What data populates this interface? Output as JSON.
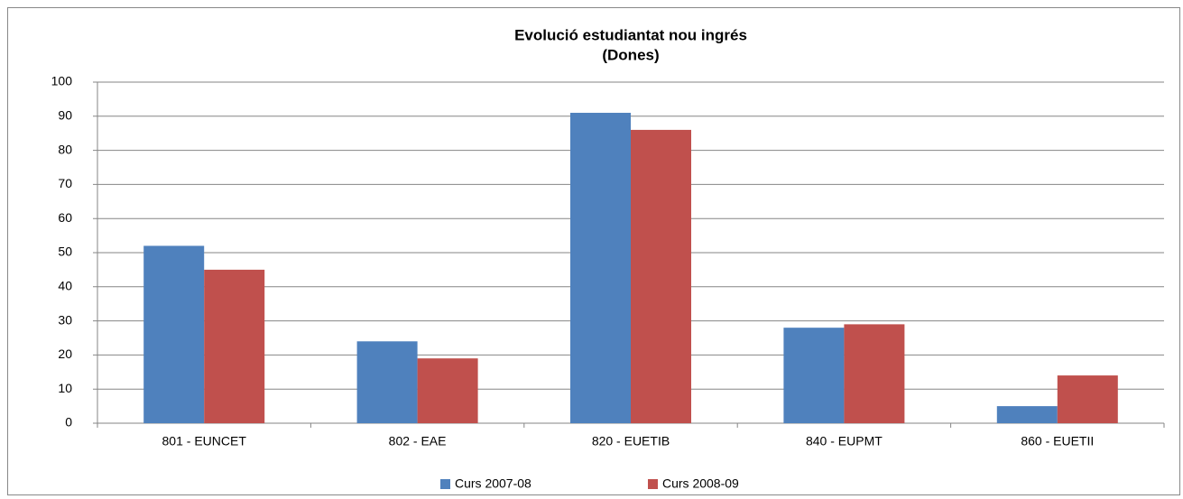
{
  "chart_data": {
    "type": "bar",
    "title": "Evolució estudiantat nou ingrés",
    "subtitle": "(Dones)",
    "categories": [
      "801 - EUNCET",
      "802 - EAE",
      "820 - EUETIB",
      "840 - EUPMT",
      "860 - EUETII"
    ],
    "series": [
      {
        "name": "Curs 2007-08",
        "color": "#4f81bd",
        "values": [
          52,
          24,
          91,
          28,
          5
        ]
      },
      {
        "name": "Curs 2008-09",
        "color": "#c0504d",
        "values": [
          45,
          19,
          86,
          29,
          14
        ]
      }
    ],
    "ylim": [
      0,
      100
    ],
    "yticks": [
      0,
      10,
      20,
      30,
      40,
      50,
      60,
      70,
      80,
      90,
      100
    ],
    "grid": true,
    "legend": "bottom"
  }
}
